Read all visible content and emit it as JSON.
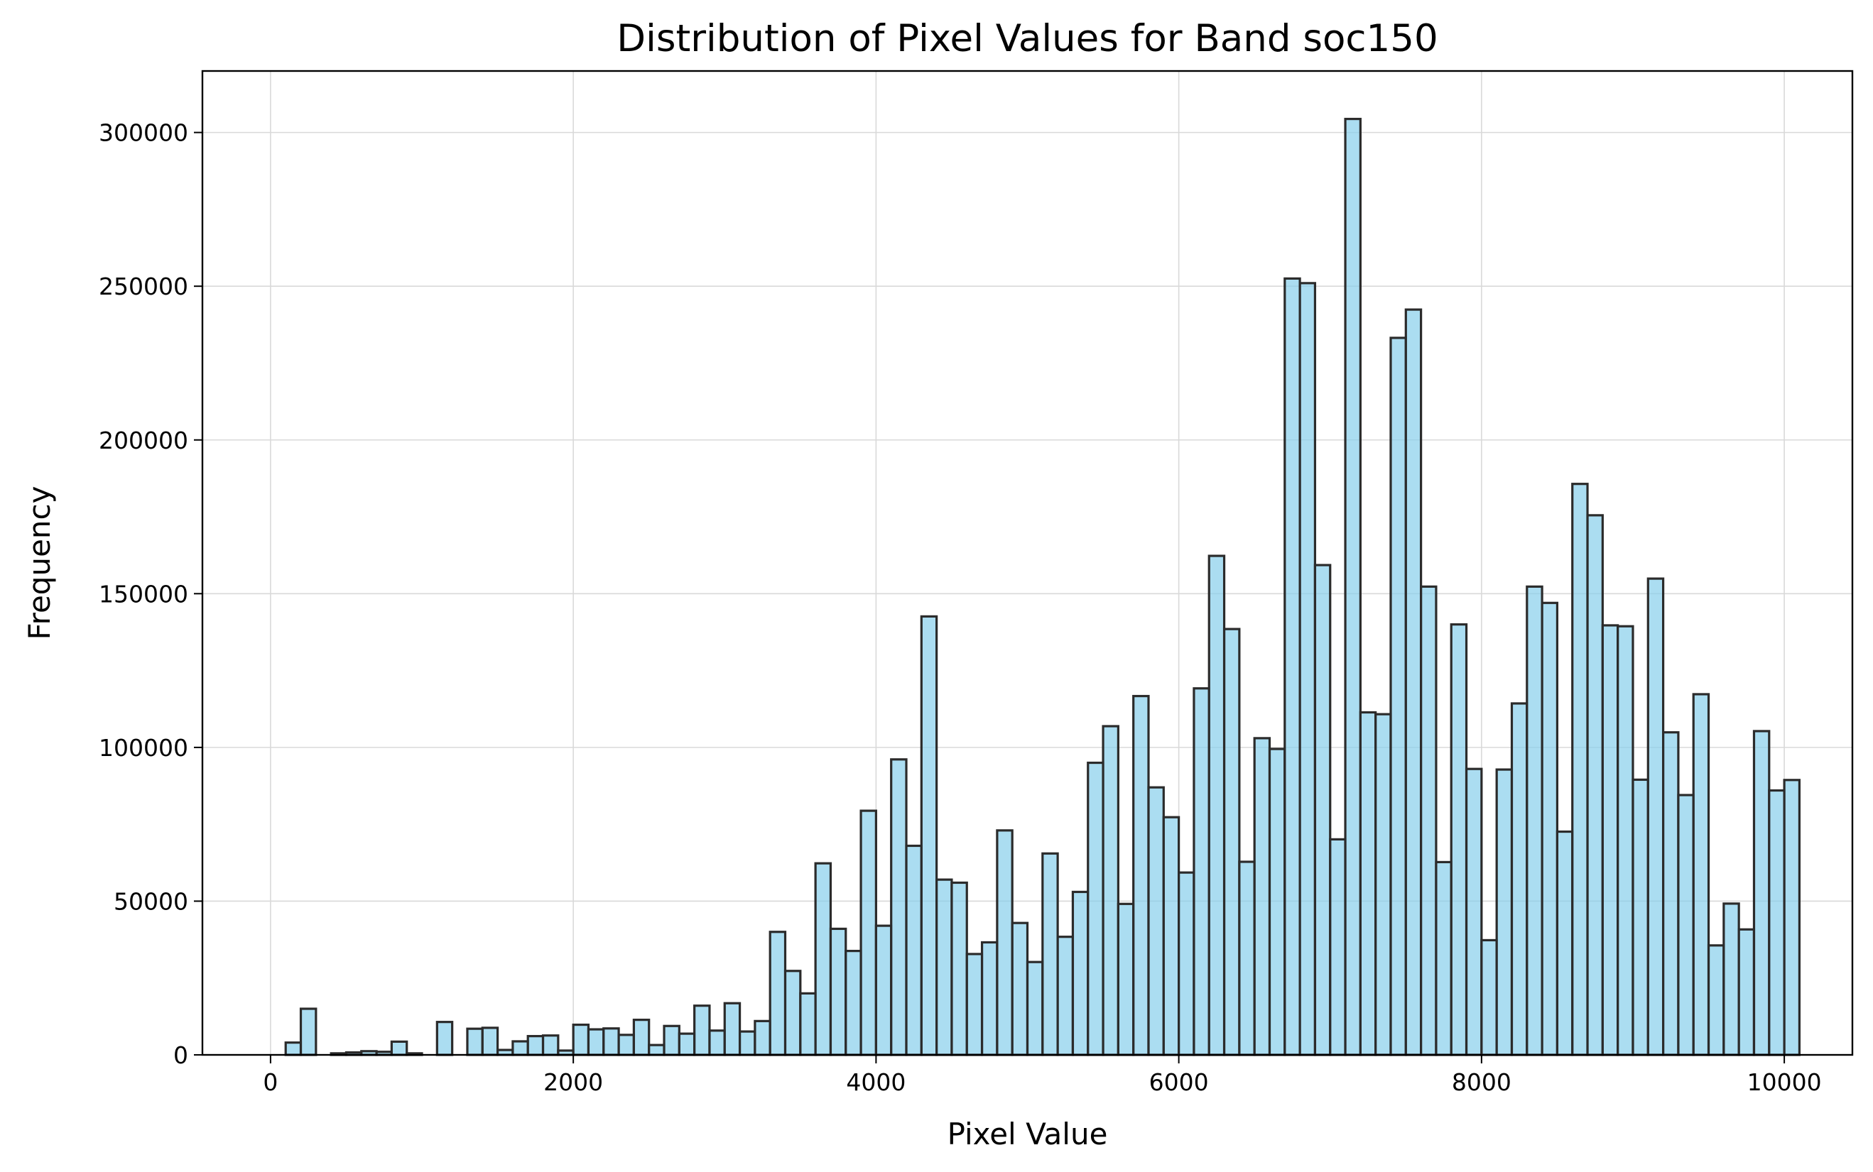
{
  "chart_data": {
    "type": "bar",
    "title": "Distribution of Pixel Values for Band soc150",
    "xlabel": "Pixel Value",
    "ylabel": "Frequency",
    "xlim": [
      -450,
      10450
    ],
    "ylim": [
      0,
      320000
    ],
    "xticks": [
      0,
      2000,
      4000,
      6000,
      8000,
      10000
    ],
    "yticks": [
      0,
      50000,
      100000,
      150000,
      200000,
      250000,
      300000
    ],
    "grid": true,
    "legend": "none",
    "bin_start": 0,
    "bin_width": 100,
    "bar_color": "#87ceeb",
    "edge_color": "#000000",
    "values": [
      0,
      4000,
      15000,
      0,
      500,
      800,
      1200,
      1000,
      4300,
      500,
      0,
      10700,
      0,
      8500,
      8800,
      1600,
      4400,
      6100,
      6300,
      1400,
      9800,
      8300,
      8600,
      6500,
      11400,
      3200,
      9400,
      6900,
      16000,
      7900,
      16800,
      7600,
      11000,
      40000,
      27300,
      20000,
      62300,
      41000,
      33800,
      79400,
      42000,
      96100,
      68000,
      142600,
      57000,
      56000,
      32800,
      36600,
      73000,
      42900,
      30200,
      65500,
      38400,
      53000,
      95000,
      106900,
      49100,
      116700,
      87000,
      77300,
      59300,
      119200,
      162300,
      138500,
      62800,
      103000,
      99500,
      252500,
      251000,
      159300,
      70100,
      304400,
      111400,
      110800,
      233200,
      242400,
      152300,
      62700,
      140000,
      93000,
      37300,
      92800,
      114300,
      152300,
      147000,
      72600,
      185700,
      175500,
      139700,
      139400,
      89500,
      154900,
      104900,
      84500,
      117300,
      35600,
      49200,
      40800,
      105300,
      86000,
      89400
    ]
  }
}
